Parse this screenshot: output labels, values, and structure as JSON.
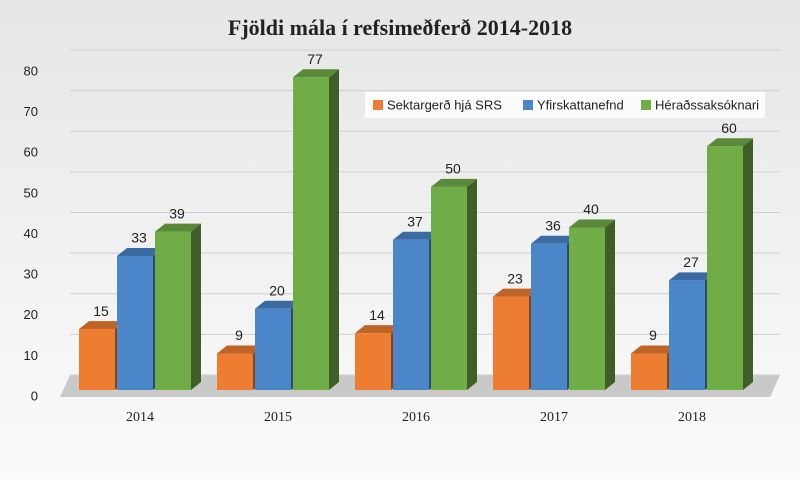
{
  "chart_data": {
    "type": "bar",
    "title": "Fjöldi mála í refsimeðferð 2014-2018",
    "categories": [
      "2014",
      "2015",
      "2016",
      "2017",
      "2018"
    ],
    "series": [
      {
        "name": "Sektargerð hjá SRS",
        "color": "#ed7d31",
        "values": [
          15,
          9,
          14,
          23,
          9
        ]
      },
      {
        "name": "Yfirskattanefnd",
        "color": "#4a86c8",
        "values": [
          33,
          20,
          37,
          36,
          27
        ]
      },
      {
        "name": "Héraðssaksóknari",
        "color": "#70ad47",
        "values": [
          39,
          77,
          50,
          40,
          60
        ]
      }
    ],
    "ylim": [
      0,
      80
    ],
    "yticks": [
      0,
      10,
      20,
      30,
      40,
      50,
      60,
      70,
      80
    ],
    "grid": true,
    "legend": "top-right"
  }
}
